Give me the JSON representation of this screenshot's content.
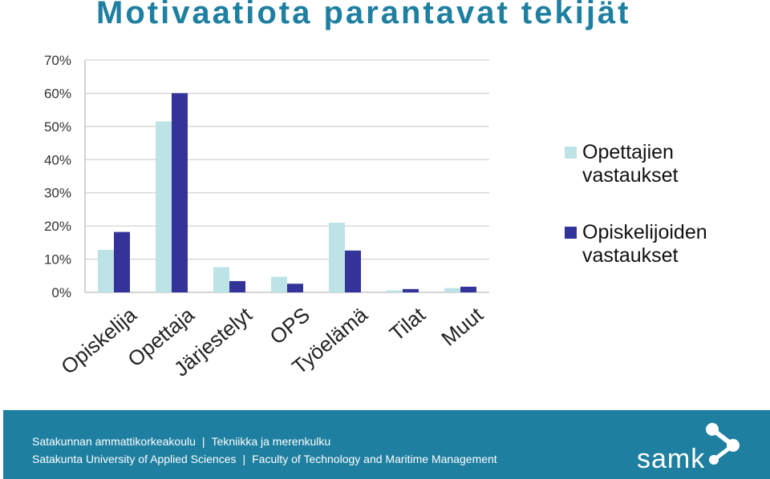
{
  "title": "Motivaatiota parantavat tekijät",
  "chart_data": {
    "type": "bar",
    "categories": [
      "Opiskelija",
      "Opettaja",
      "Järjestelyt",
      "OPS",
      "Työelämä",
      "Tilat",
      "Muut"
    ],
    "series": [
      {
        "name": "Opettajien vastaukset",
        "color": "#bde3e6",
        "values": [
          12.8,
          51.5,
          7.6,
          4.7,
          21.0,
          0.6,
          1.3
        ]
      },
      {
        "name": "Opiskelijoiden vastaukset",
        "color": "#333399",
        "values": [
          18.2,
          60.0,
          3.4,
          2.6,
          12.6,
          1.0,
          1.7
        ]
      }
    ],
    "yticks": [
      "0%",
      "10%",
      "20%",
      "30%",
      "40%",
      "50%",
      "60%",
      "70%"
    ],
    "ylim": [
      0,
      70
    ],
    "grid": true,
    "legend": "right"
  },
  "footer": {
    "line1_left": "Satakunnan ammattikorkeakoulu",
    "line1_sep": "|",
    "line1_right": "Tekniikka ja merenkulku",
    "line2_left": "Satakunta University of Applied Sciences",
    "line2_sep": "|",
    "line2_right": "Faculty of Technology and Maritime Management",
    "background": "#1e7fa0"
  },
  "logo": {
    "text": "samk"
  }
}
